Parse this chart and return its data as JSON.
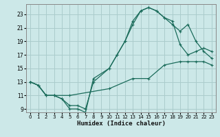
{
  "xlabel": "Humidex (Indice chaleur)",
  "bg_color": "#cce8e8",
  "grid_color": "#aacccc",
  "line_color": "#1a6b5a",
  "xlim": [
    -0.5,
    23.5
  ],
  "ylim": [
    8.5,
    24.5
  ],
  "xticks": [
    0,
    1,
    2,
    3,
    4,
    5,
    6,
    7,
    8,
    9,
    10,
    11,
    12,
    13,
    14,
    15,
    16,
    17,
    18,
    19,
    20,
    21,
    22,
    23
  ],
  "yticks": [
    9,
    11,
    13,
    15,
    17,
    19,
    21,
    23
  ],
  "line1_x": [
    0,
    1,
    2,
    3,
    4,
    5,
    6,
    7,
    8,
    10,
    11,
    12,
    13,
    14,
    15,
    16,
    17,
    18,
    19,
    20,
    21,
    22,
    23
  ],
  "line1_y": [
    13,
    12.5,
    11,
    11,
    10.5,
    9.5,
    9.5,
    9,
    13,
    15,
    17,
    19,
    22,
    23.5,
    24,
    23.5,
    22.5,
    22,
    18.5,
    17,
    17.5,
    18,
    17.5
  ],
  "line2_x": [
    0,
    1,
    2,
    3,
    4,
    5,
    6,
    7,
    8,
    10,
    11,
    12,
    13,
    14,
    15,
    16,
    17,
    18,
    19,
    20,
    21,
    22,
    23
  ],
  "line2_y": [
    13,
    12.5,
    11,
    11,
    10.5,
    9,
    9,
    8.5,
    13.5,
    15,
    17,
    19,
    21.5,
    23.5,
    24,
    23.5,
    22.5,
    21.5,
    20.5,
    21.5,
    19,
    17.5,
    16.5
  ],
  "line3_x": [
    0,
    1,
    2,
    3,
    5,
    10,
    13,
    15,
    17,
    19,
    20,
    21,
    22,
    23
  ],
  "line3_y": [
    13,
    12.5,
    11,
    11,
    11,
    12,
    13.5,
    13.5,
    15.5,
    16,
    16,
    16,
    16,
    15.5
  ]
}
